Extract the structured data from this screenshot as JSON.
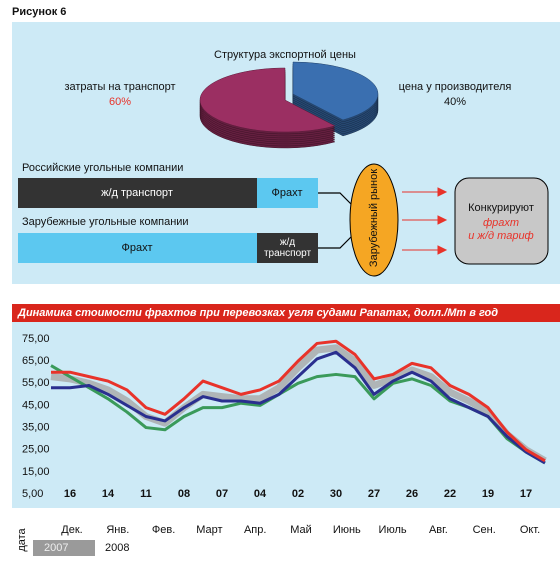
{
  "figure_label": "Рисунок 6",
  "diagram": {
    "groups": [
      {
        "label": "Российские угольные компании",
        "segments": [
          "ж/д транспорт",
          "Фрахт"
        ]
      },
      {
        "label": "Зарубежные угольные компании",
        "segments": [
          "Фрахт",
          "ж/д транспорт"
        ]
      }
    ],
    "market": "Зарубежный рынок",
    "competition": {
      "title": "Конкурируют",
      "items": [
        "фрахт",
        "и ж/д тариф"
      ]
    }
  },
  "chart_data": [
    {
      "type": "pie",
      "title": "Структура экспортной цены",
      "categories": [
        "затраты на транспорт",
        "цена у производителя"
      ],
      "values": [
        60,
        40
      ],
      "value_labels": [
        "60%",
        "40%"
      ],
      "colors": [
        "#9b2f62",
        "#3a6fb0"
      ]
    },
    {
      "type": "line",
      "title": "Динамика стоимости фрахтов при перевозках угля судами Panamax, долл./Мт в год",
      "x_label": "дата",
      "categories": [
        null,
        "16",
        null,
        "14",
        null,
        "11",
        null,
        "08",
        null,
        "07",
        null,
        "04",
        null,
        "02",
        null,
        "30",
        null,
        "27",
        null,
        "26",
        null,
        "22",
        null,
        "19",
        null,
        "17",
        null
      ],
      "months": [
        "Дек.",
        "Янв.",
        "Фев.",
        "Март",
        "Апр.",
        "Май",
        "Июнь",
        "Июль",
        "Авг.",
        "Сен.",
        "Окт."
      ],
      "years": [
        "2007",
        "2008"
      ],
      "series": [
        {
          "color": "#a8a8a8",
          "values": [
            58,
            57,
            55,
            52,
            47,
            40,
            37,
            44,
            50,
            49,
            48,
            48,
            53,
            62,
            70,
            71,
            65,
            54,
            57,
            61,
            58,
            51,
            47,
            42,
            32,
            25,
            20
          ]
        },
        {
          "color": "#3a9a5a",
          "values": [
            63,
            58,
            53,
            48,
            42,
            35,
            34,
            40,
            44,
            44,
            46,
            45,
            50,
            55,
            58,
            59,
            58,
            48,
            55,
            57,
            54,
            47,
            44,
            40,
            30,
            24,
            19
          ]
        },
        {
          "color": "#2a2f8f",
          "values": [
            53,
            53,
            54,
            50,
            45,
            40,
            38,
            44,
            49,
            47,
            47,
            46,
            50,
            58,
            66,
            69,
            62,
            50,
            56,
            60,
            56,
            48,
            44,
            40,
            31,
            24,
            19
          ]
        },
        {
          "color": "#e8332a",
          "values": [
            60,
            60,
            58,
            56,
            52,
            44,
            41,
            48,
            56,
            53,
            50,
            52,
            56,
            65,
            73,
            74,
            68,
            57,
            59,
            64,
            62,
            54,
            50,
            44,
            33,
            25,
            20
          ]
        }
      ],
      "ylim": [
        5,
        75
      ],
      "yticks": [
        {
          "value": 5,
          "label": "5,00"
        },
        {
          "value": 15,
          "label": "15,00"
        },
        {
          "value": 25,
          "label": "25,00"
        },
        {
          "value": 35,
          "label": "35,00"
        },
        {
          "value": 45,
          "label": "45,00"
        },
        {
          "value": 55,
          "label": "55,00"
        },
        {
          "value": 65,
          "label": "65,00"
        },
        {
          "value": 75,
          "label": "75,00"
        }
      ]
    }
  ]
}
